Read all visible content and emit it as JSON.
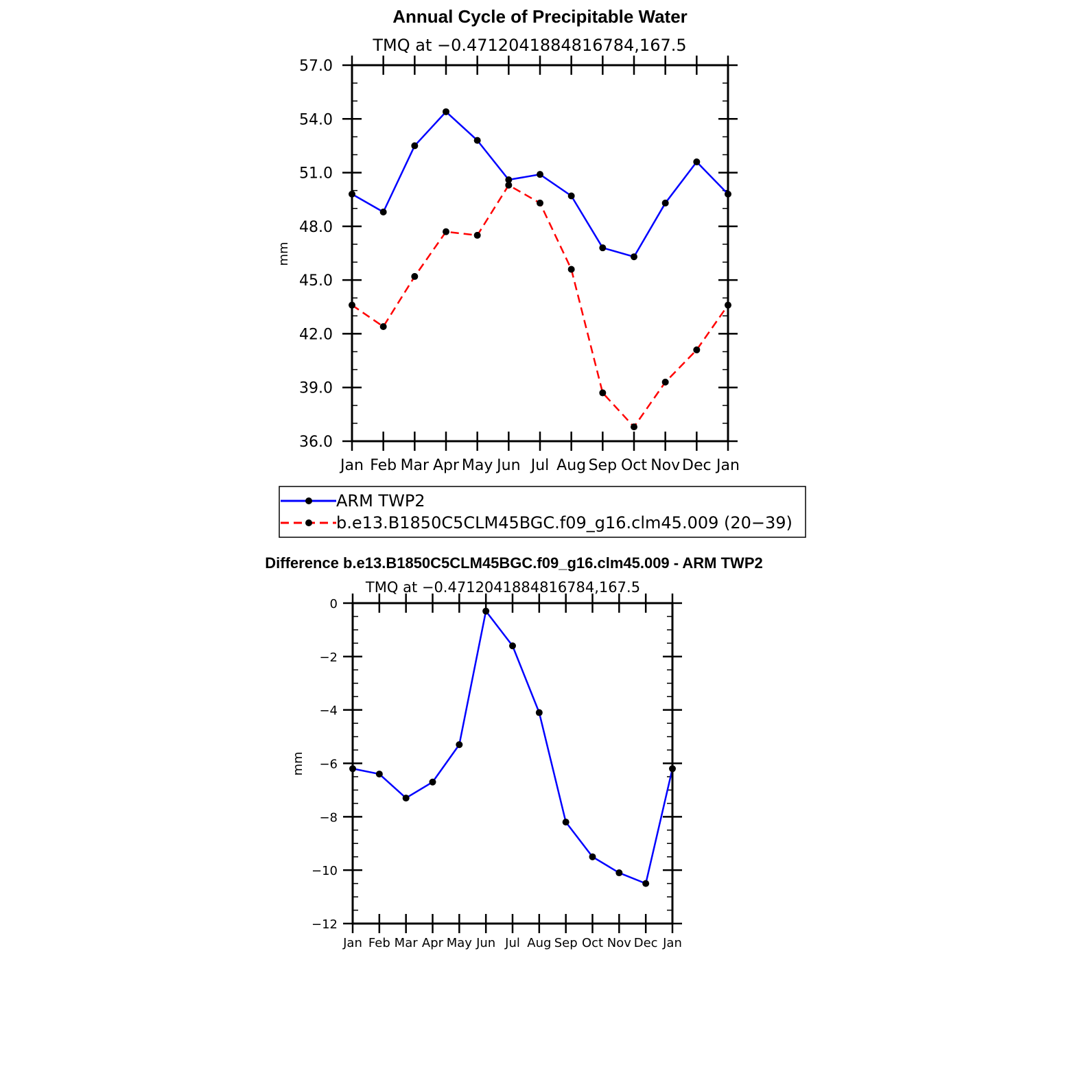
{
  "chart_data": [
    {
      "type": "line",
      "title": "Annual Cycle of Precipitable Water",
      "subtitle": "TMQ  at  −0.4712041884816784,167.5",
      "xlabel": "",
      "ylabel": "mm",
      "categories": [
        "Jan",
        "Feb",
        "Mar",
        "Apr",
        "May",
        "Jun",
        "Jul",
        "Aug",
        "Sep",
        "Oct",
        "Nov",
        "Dec",
        "Jan"
      ],
      "ylim": [
        36.0,
        57.0
      ],
      "yticks": [
        "36.0",
        "39.0",
        "42.0",
        "45.0",
        "48.0",
        "51.0",
        "54.0",
        "57.0"
      ],
      "legend_position": "below",
      "series": [
        {
          "name": "ARM  TWP2",
          "color": "#0000ff",
          "style": "solid",
          "values": [
            49.8,
            48.8,
            52.5,
            54.4,
            52.8,
            50.6,
            50.9,
            49.7,
            46.8,
            46.3,
            49.3,
            51.6,
            49.8
          ]
        },
        {
          "name": "b.e13.B1850C5CLM45BGC.f09_g16.clm45.009  (20−39)",
          "color": "#ff0000",
          "style": "dashed",
          "values": [
            43.6,
            42.4,
            45.2,
            47.7,
            47.5,
            50.3,
            49.3,
            45.6,
            38.7,
            36.8,
            39.3,
            41.1,
            43.6
          ]
        }
      ]
    },
    {
      "type": "line",
      "title": "Difference b.e13.B1850C5CLM45BGC.f09_g16.clm45.009 - ARM TWP2",
      "subtitle": "TMQ  at  −0.4712041884816784,167.5",
      "xlabel": "",
      "ylabel": "mm",
      "categories": [
        "Jan",
        "Feb",
        "Mar",
        "Apr",
        "May",
        "Jun",
        "Jul",
        "Aug",
        "Sep",
        "Oct",
        "Nov",
        "Dec",
        "Jan"
      ],
      "ylim": [
        -12,
        0
      ],
      "yticks": [
        "−12",
        "−10",
        "−8",
        "−6",
        "−4",
        "−2",
        "0"
      ],
      "series": [
        {
          "color": "#0000ff",
          "style": "solid",
          "values": [
            -6.2,
            -6.4,
            -7.3,
            -6.7,
            -5.3,
            -0.3,
            -1.6,
            -4.1,
            -8.2,
            -9.5,
            -10.1,
            -10.5,
            -6.2
          ]
        }
      ]
    }
  ]
}
